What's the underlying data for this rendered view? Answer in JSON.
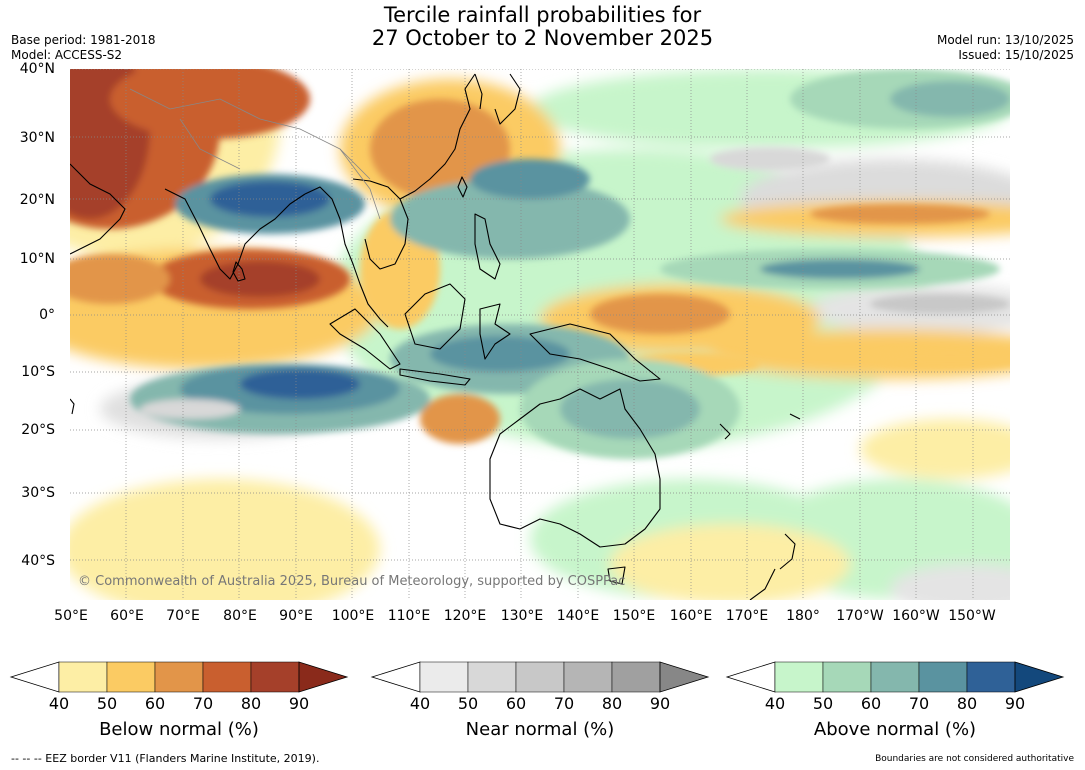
{
  "title": {
    "line1": "Tercile rainfall probabilities for",
    "line2": "27 October to 2 November 2025"
  },
  "meta": {
    "base_period": "Base period: 1981-2018",
    "model": "Model: ACCESS-S2",
    "model_run": "Model run: 13/10/2025",
    "issued": "Issued: 15/10/2025"
  },
  "map": {
    "latitude_labels": [
      "40°N",
      "30°N",
      "20°N",
      "10°N",
      "0°",
      "10°S",
      "20°S",
      "30°S",
      "40°S"
    ],
    "longitude_labels": [
      "50°E",
      "60°E",
      "70°E",
      "80°E",
      "90°E",
      "100°E",
      "110°E",
      "120°E",
      "130°E",
      "140°E",
      "150°E",
      "160°E",
      "170°E",
      "180°",
      "170°W",
      "160°W",
      "150°W"
    ],
    "copyright": "© Commonwealth of Australia 2025, Bureau of Meteorology, supported by COSPPac",
    "palette": {
      "below": [
        "#fdeea5",
        "#fbcb63",
        "#e29549",
        "#c95f2f",
        "#a5402a",
        "#8a2a1b"
      ],
      "near": [
        "#ebebeb",
        "#d8d8d8",
        "#c8c8c8",
        "#b5b5b5",
        "#a0a0a0",
        "#878787"
      ],
      "above": [
        "#c7f5cb",
        "#a6d8b8",
        "#84b7ad",
        "#5a93a0",
        "#2f6197",
        "#13487c"
      ],
      "ocean": "#ffffff",
      "grid": "#888888"
    }
  },
  "colorbars": [
    {
      "title": "Below normal (%)",
      "ticks": [
        "40",
        "50",
        "60",
        "70",
        "80",
        "90"
      ],
      "colors": [
        "#fdeea5",
        "#fbcb63",
        "#e29549",
        "#c95f2f",
        "#a5402a",
        "#8a2a1b"
      ]
    },
    {
      "title": "Near normal (%)",
      "ticks": [
        "40",
        "50",
        "60",
        "70",
        "80",
        "90"
      ],
      "colors": [
        "#ebebeb",
        "#d8d8d8",
        "#c8c8c8",
        "#b5b5b5",
        "#a0a0a0",
        "#878787"
      ]
    },
    {
      "title": "Above normal (%)",
      "ticks": [
        "40",
        "50",
        "60",
        "70",
        "80",
        "90"
      ],
      "colors": [
        "#c7f5cb",
        "#a6d8b8",
        "#84b7ad",
        "#5a93a0",
        "#2f6197",
        "#13487c"
      ]
    }
  ],
  "footer": {
    "eez_legend": "--  --  -- EEZ border V11 (Flanders Marine Institute, 2019).",
    "disclaimer": "Boundaries are not considered authoritative"
  }
}
